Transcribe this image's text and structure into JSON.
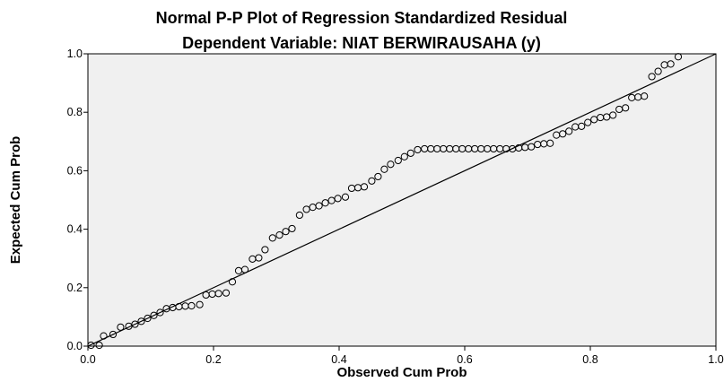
{
  "chart_data": {
    "type": "scatter",
    "title": "Normal P-P Plot of Regression Standardized Residual",
    "subtitle": "Dependent Variable: NIAT BERWIRAUSAHA (y)",
    "xlabel": "Observed Cum Prob",
    "ylabel": "Expected Cum Prob",
    "xlim": [
      0.0,
      1.0
    ],
    "ylim": [
      0.0,
      1.0
    ],
    "xticks": [
      "0.0",
      "0.2",
      "0.4",
      "0.6",
      "0.8",
      "1.0"
    ],
    "yticks": [
      "0.0",
      "0.2",
      "0.4",
      "0.6",
      "0.8",
      "1.0"
    ],
    "reference_line": {
      "from": [
        0,
        0
      ],
      "to": [
        1,
        1
      ]
    },
    "grid": false,
    "legend": "none",
    "points": [
      [
        0.005,
        0.003
      ],
      [
        0.018,
        0.003
      ],
      [
        0.025,
        0.035
      ],
      [
        0.04,
        0.04
      ],
      [
        0.052,
        0.065
      ],
      [
        0.065,
        0.068
      ],
      [
        0.075,
        0.075
      ],
      [
        0.085,
        0.085
      ],
      [
        0.095,
        0.095
      ],
      [
        0.105,
        0.105
      ],
      [
        0.115,
        0.115
      ],
      [
        0.125,
        0.128
      ],
      [
        0.135,
        0.132
      ],
      [
        0.145,
        0.135
      ],
      [
        0.155,
        0.137
      ],
      [
        0.165,
        0.138
      ],
      [
        0.178,
        0.142
      ],
      [
        0.188,
        0.175
      ],
      [
        0.198,
        0.178
      ],
      [
        0.208,
        0.18
      ],
      [
        0.22,
        0.182
      ],
      [
        0.23,
        0.22
      ],
      [
        0.24,
        0.258
      ],
      [
        0.25,
        0.262
      ],
      [
        0.262,
        0.298
      ],
      [
        0.272,
        0.302
      ],
      [
        0.282,
        0.33
      ],
      [
        0.294,
        0.37
      ],
      [
        0.305,
        0.38
      ],
      [
        0.315,
        0.392
      ],
      [
        0.325,
        0.402
      ],
      [
        0.337,
        0.448
      ],
      [
        0.348,
        0.468
      ],
      [
        0.358,
        0.475
      ],
      [
        0.368,
        0.48
      ],
      [
        0.378,
        0.49
      ],
      [
        0.388,
        0.498
      ],
      [
        0.398,
        0.505
      ],
      [
        0.41,
        0.51
      ],
      [
        0.42,
        0.54
      ],
      [
        0.43,
        0.542
      ],
      [
        0.44,
        0.545
      ],
      [
        0.452,
        0.565
      ],
      [
        0.462,
        0.58
      ],
      [
        0.472,
        0.605
      ],
      [
        0.482,
        0.622
      ],
      [
        0.494,
        0.635
      ],
      [
        0.504,
        0.648
      ],
      [
        0.514,
        0.66
      ],
      [
        0.525,
        0.672
      ],
      [
        0.536,
        0.675
      ],
      [
        0.546,
        0.675
      ],
      [
        0.556,
        0.675
      ],
      [
        0.566,
        0.675
      ],
      [
        0.576,
        0.675
      ],
      [
        0.586,
        0.675
      ],
      [
        0.596,
        0.675
      ],
      [
        0.606,
        0.675
      ],
      [
        0.616,
        0.675
      ],
      [
        0.626,
        0.675
      ],
      [
        0.636,
        0.675
      ],
      [
        0.646,
        0.675
      ],
      [
        0.656,
        0.675
      ],
      [
        0.666,
        0.675
      ],
      [
        0.676,
        0.675
      ],
      [
        0.686,
        0.678
      ],
      [
        0.696,
        0.68
      ],
      [
        0.706,
        0.682
      ],
      [
        0.716,
        0.69
      ],
      [
        0.726,
        0.692
      ],
      [
        0.736,
        0.694
      ],
      [
        0.746,
        0.722
      ],
      [
        0.756,
        0.726
      ],
      [
        0.766,
        0.735
      ],
      [
        0.776,
        0.75
      ],
      [
        0.786,
        0.752
      ],
      [
        0.796,
        0.765
      ],
      [
        0.806,
        0.775
      ],
      [
        0.816,
        0.782
      ],
      [
        0.826,
        0.784
      ],
      [
        0.836,
        0.79
      ],
      [
        0.846,
        0.81
      ],
      [
        0.856,
        0.815
      ],
      [
        0.866,
        0.85
      ],
      [
        0.876,
        0.852
      ],
      [
        0.886,
        0.855
      ],
      [
        0.898,
        0.922
      ],
      [
        0.908,
        0.94
      ],
      [
        0.918,
        0.962
      ],
      [
        0.928,
        0.965
      ],
      [
        0.94,
        0.99
      ]
    ]
  }
}
